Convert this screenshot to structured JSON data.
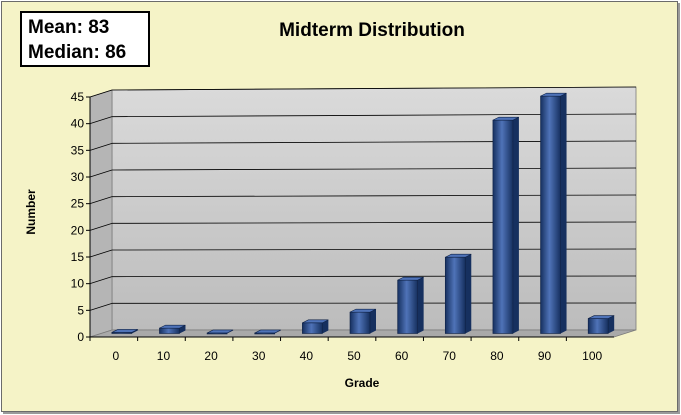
{
  "stats": {
    "mean_label": "Mean:",
    "mean_value": "83",
    "median_label": "Median:",
    "median_value": "86"
  },
  "chart_data": {
    "type": "bar",
    "title": "Midterm Distribution",
    "xlabel": "Grade",
    "ylabel": "Number",
    "categories": [
      "0",
      "10",
      "20",
      "30",
      "40",
      "50",
      "60",
      "70",
      "80",
      "90",
      "100"
    ],
    "values": [
      0.2,
      1,
      0.1,
      0.1,
      2,
      4,
      10,
      14.3,
      40,
      44.5,
      2.8
    ],
    "ylim": [
      0,
      45
    ],
    "yticks": [
      0,
      5,
      10,
      15,
      20,
      25,
      30,
      35,
      40,
      45
    ],
    "grid": true,
    "legend": "none",
    "colors": {
      "bar": "#2a4b8d",
      "bar_light": "#4f73b8",
      "bar_dark": "#16305f",
      "wall": "#c9c9c9",
      "floor": "#a9a9a9",
      "background": "#f5f3c7"
    }
  }
}
